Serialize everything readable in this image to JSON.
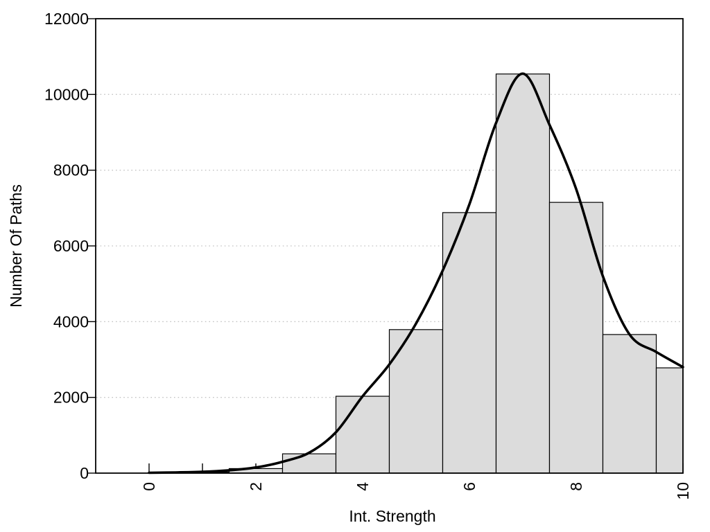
{
  "chart_data": {
    "type": "bar",
    "subtype": "histogram-with-density-curve",
    "title": "",
    "xlabel": "Int. Strength",
    "ylabel": "Number Of Paths",
    "xlim": [
      -1,
      10
    ],
    "ylim": [
      0,
      12000
    ],
    "x_tick_positions": [
      0,
      1,
      2,
      3,
      4,
      5,
      6,
      7,
      8,
      9,
      10
    ],
    "x_labeled_ticks": [
      0,
      2,
      4,
      6,
      8,
      10
    ],
    "y_ticks": [
      0,
      2000,
      4000,
      6000,
      8000,
      10000,
      12000
    ],
    "grid": {
      "horizontal_dotted_at": [
        2000,
        4000,
        6000,
        8000,
        10000
      ],
      "color": "#c3c3c3"
    },
    "bars": {
      "fill": "#dcdcdc",
      "stroke": "#000000",
      "bin_width": 1,
      "bins_note": "each bin is [left_edge, right_edge, count]; last bin clipped at x=10",
      "bins": [
        [
          0.5,
          1.5,
          25
        ],
        [
          1.5,
          2.5,
          120
        ],
        [
          2.5,
          3.5,
          510
        ],
        [
          3.5,
          4.5,
          2030
        ],
        [
          4.5,
          5.5,
          3790
        ],
        [
          5.5,
          6.5,
          6880
        ],
        [
          6.5,
          7.5,
          10540
        ],
        [
          7.5,
          8.5,
          7150
        ],
        [
          8.5,
          9.5,
          3660
        ],
        [
          9.5,
          10.0,
          2780
        ]
      ]
    },
    "curve": {
      "name": "density-fit-curve",
      "color": "#000000",
      "points": [
        [
          0,
          10
        ],
        [
          0.5,
          18
        ],
        [
          1,
          35
        ],
        [
          1.5,
          75
        ],
        [
          2,
          150
        ],
        [
          2.5,
          300
        ],
        [
          3,
          540
        ],
        [
          3.5,
          1080
        ],
        [
          4,
          2030
        ],
        [
          4.5,
          2870
        ],
        [
          5,
          3950
        ],
        [
          5.5,
          5350
        ],
        [
          6,
          7100
        ],
        [
          6.5,
          9250
        ],
        [
          7,
          10550
        ],
        [
          7.5,
          9200
        ],
        [
          8,
          7500
        ],
        [
          8.5,
          5200
        ],
        [
          9,
          3660
        ],
        [
          9.5,
          3200
        ],
        [
          10,
          2800
        ]
      ]
    },
    "axis_color": "#000000",
    "background": "#ffffff"
  }
}
